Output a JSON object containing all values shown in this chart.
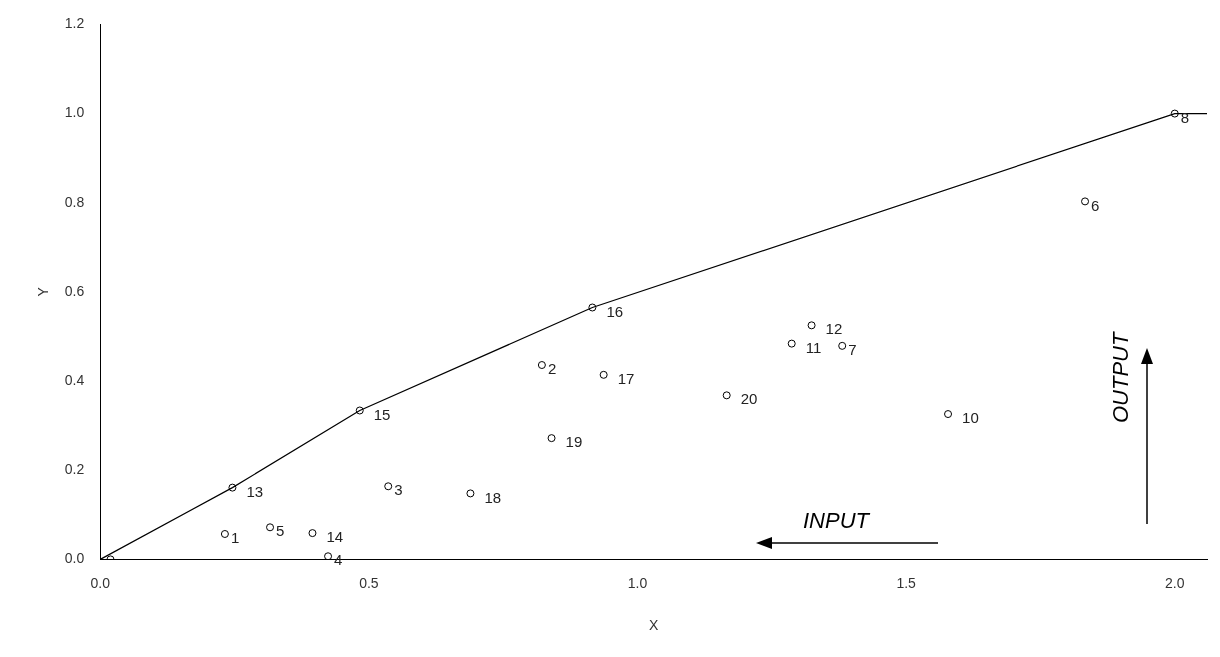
{
  "chart_data": {
    "type": "scatter",
    "xlabel": "X",
    "ylabel": "Y",
    "xlim": [
      0,
      2.06
    ],
    "ylim": [
      0,
      1.2
    ],
    "xticks": [
      {
        "value": 0,
        "label": "0.0"
      },
      {
        "value": 0.5,
        "label": "0.5"
      },
      {
        "value": 1,
        "label": "1.0"
      },
      {
        "value": 1.5,
        "label": "1.5"
      },
      {
        "value": 2,
        "label": "2.0"
      }
    ],
    "yticks": [
      {
        "value": 0,
        "label": "0.0"
      },
      {
        "value": 0.2,
        "label": "0.2"
      },
      {
        "value": 0.4,
        "label": "0.4"
      },
      {
        "value": 0.6,
        "label": "0.6"
      },
      {
        "value": 0.8,
        "label": "0.8"
      },
      {
        "value": 1,
        "label": "1.0"
      },
      {
        "value": 1.2,
        "label": "1.2"
      }
    ],
    "grid": false,
    "legend": false,
    "marker": "circle",
    "annotations": [
      "INPUT",
      "OUTPUT",
      {
        "text": "1",
        "x": 0.232,
        "y": 0.057
      },
      {
        "text": "2",
        "x": 0.822,
        "y": 0.436
      },
      {
        "text": "3",
        "x": 0.536,
        "y": 0.164
      },
      {
        "text": "4",
        "x": 0.424,
        "y": 0.007
      },
      {
        "text": "5",
        "x": 0.316,
        "y": 0.072
      },
      {
        "text": "6",
        "x": 1.833,
        "y": 0.803
      },
      {
        "text": "7",
        "x": 1.381,
        "y": 0.479
      },
      {
        "text": "8",
        "x": 2.0,
        "y": 1.0
      },
      {
        "text": "10",
        "x": 1.578,
        "y": 0.326
      },
      {
        "text": "11",
        "x": 1.287,
        "y": 0.484
      },
      {
        "text": "12",
        "x": 1.324,
        "y": 0.525
      },
      {
        "text": "13",
        "x": 0.246,
        "y": 0.161
      },
      {
        "text": "14",
        "x": 0.395,
        "y": 0.059
      },
      {
        "text": "15",
        "x": 0.483,
        "y": 0.334
      },
      {
        "text": "16",
        "x": 0.916,
        "y": 0.565
      },
      {
        "text": "17",
        "x": 0.937,
        "y": 0.414
      },
      {
        "text": "18",
        "x": 0.689,
        "y": 0.148
      },
      {
        "text": "19",
        "x": 0.84,
        "y": 0.272
      },
      {
        "text": "20",
        "x": 1.166,
        "y": 0.368
      }
    ],
    "series": [
      {
        "color": "#000000",
        "x": [
          0.232,
          0.822,
          0.536,
          0.424,
          0.316,
          1.833,
          1.381,
          2.0,
          0.019,
          1.578,
          1.287,
          1.324,
          0.246,
          0.395,
          0.483,
          0.916,
          0.937,
          0.689,
          0.84,
          1.166
        ],
        "values": [
          0.057,
          0.436,
          0.164,
          0.007,
          0.072,
          0.803,
          0.479,
          1.0,
          0,
          0.326,
          0.484,
          0.525,
          0.161,
          0.059,
          0.334,
          0.565,
          0.414,
          0.148,
          0.272,
          0.368
        ]
      },
      {
        "type": "line",
        "color": "#000000",
        "marker": "none",
        "line_style": "solid",
        "x": [
          0,
          0.246,
          0.483,
          0.916,
          2.0,
          2.06
        ],
        "values": [
          0,
          0.161,
          0.334,
          0.565,
          1.0,
          1.0
        ]
      }
    ]
  }
}
